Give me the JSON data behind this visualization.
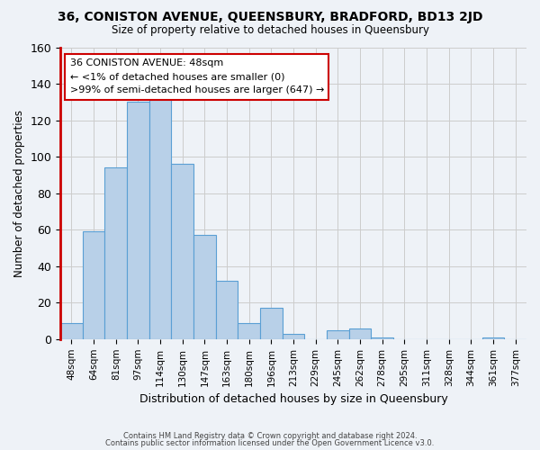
{
  "title": "36, CONISTON AVENUE, QUEENSBURY, BRADFORD, BD13 2JD",
  "subtitle": "Size of property relative to detached houses in Queensbury",
  "xlabel": "Distribution of detached houses by size in Queensbury",
  "ylabel": "Number of detached properties",
  "footer_line1": "Contains HM Land Registry data © Crown copyright and database right 2024.",
  "footer_line2": "Contains public sector information licensed under the Open Government Licence v3.0.",
  "bin_labels": [
    "48sqm",
    "64sqm",
    "81sqm",
    "97sqm",
    "114sqm",
    "130sqm",
    "147sqm",
    "163sqm",
    "180sqm",
    "196sqm",
    "213sqm",
    "229sqm",
    "245sqm",
    "262sqm",
    "278sqm",
    "295sqm",
    "311sqm",
    "328sqm",
    "344sqm",
    "361sqm",
    "377sqm"
  ],
  "bin_values": [
    9,
    59,
    94,
    130,
    132,
    96,
    57,
    32,
    9,
    17,
    3,
    0,
    5,
    6,
    1,
    0,
    0,
    0,
    0,
    1,
    0
  ],
  "bar_color": "#b8d0e8",
  "bar_edge_color": "#5a9fd4",
  "annotation_title": "36 CONISTON AVENUE: 48sqm",
  "annotation_line1": "← <1% of detached houses are smaller (0)",
  "annotation_line2": ">99% of semi-detached houses are larger (647) →",
  "annotation_box_edge": "#cc0000",
  "annotation_box_bg": "#ffffff",
  "ylim": [
    0,
    160
  ],
  "yticks": [
    0,
    20,
    40,
    60,
    80,
    100,
    120,
    140,
    160
  ],
  "bg_color": "#eef2f7",
  "grid_color": "#cccccc"
}
